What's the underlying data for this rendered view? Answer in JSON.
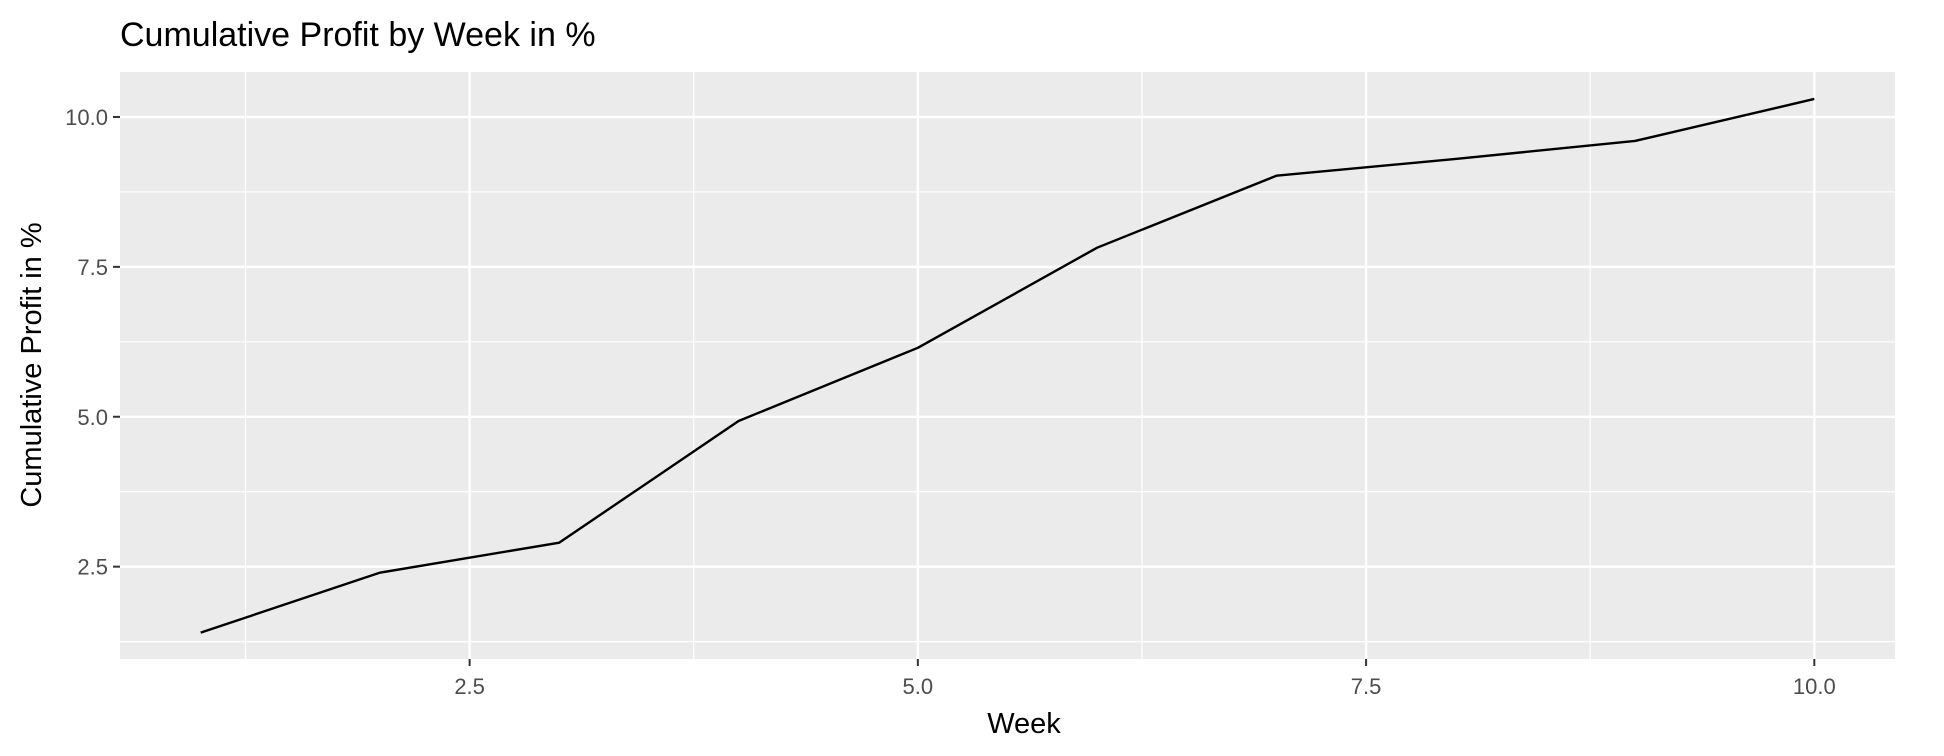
{
  "chart_data": {
    "type": "line",
    "title": "Cumulative Profit by Week in %",
    "xlabel": "Week",
    "ylabel": "Cumulative Profit in %",
    "xlim": [
      0.55,
      10.45
    ],
    "ylim": [
      0.96,
      10.75
    ],
    "x_ticks": [
      2.5,
      5.0,
      7.5,
      10.0
    ],
    "x_tick_labels": [
      "2.5",
      "5.0",
      "7.5",
      "10.0"
    ],
    "y_ticks": [
      2.5,
      5.0,
      7.5,
      10.0
    ],
    "y_tick_labels": [
      "2.5",
      "5.0",
      "7.5",
      "10.0"
    ],
    "grid": true,
    "legend": "none",
    "colors": {
      "panel_background": "#ebebeb",
      "grid_line": "#ffffff",
      "line": "#000000",
      "tick_text": "#4d4d4d",
      "tick_mark": "#333333"
    },
    "series": [
      {
        "x": [
          1,
          2,
          3,
          4,
          5,
          6,
          7,
          8,
          9,
          10
        ],
        "values": [
          1.4,
          2.4,
          2.9,
          4.93,
          6.15,
          7.82,
          9.02,
          9.3,
          9.6,
          10.3
        ]
      }
    ]
  }
}
